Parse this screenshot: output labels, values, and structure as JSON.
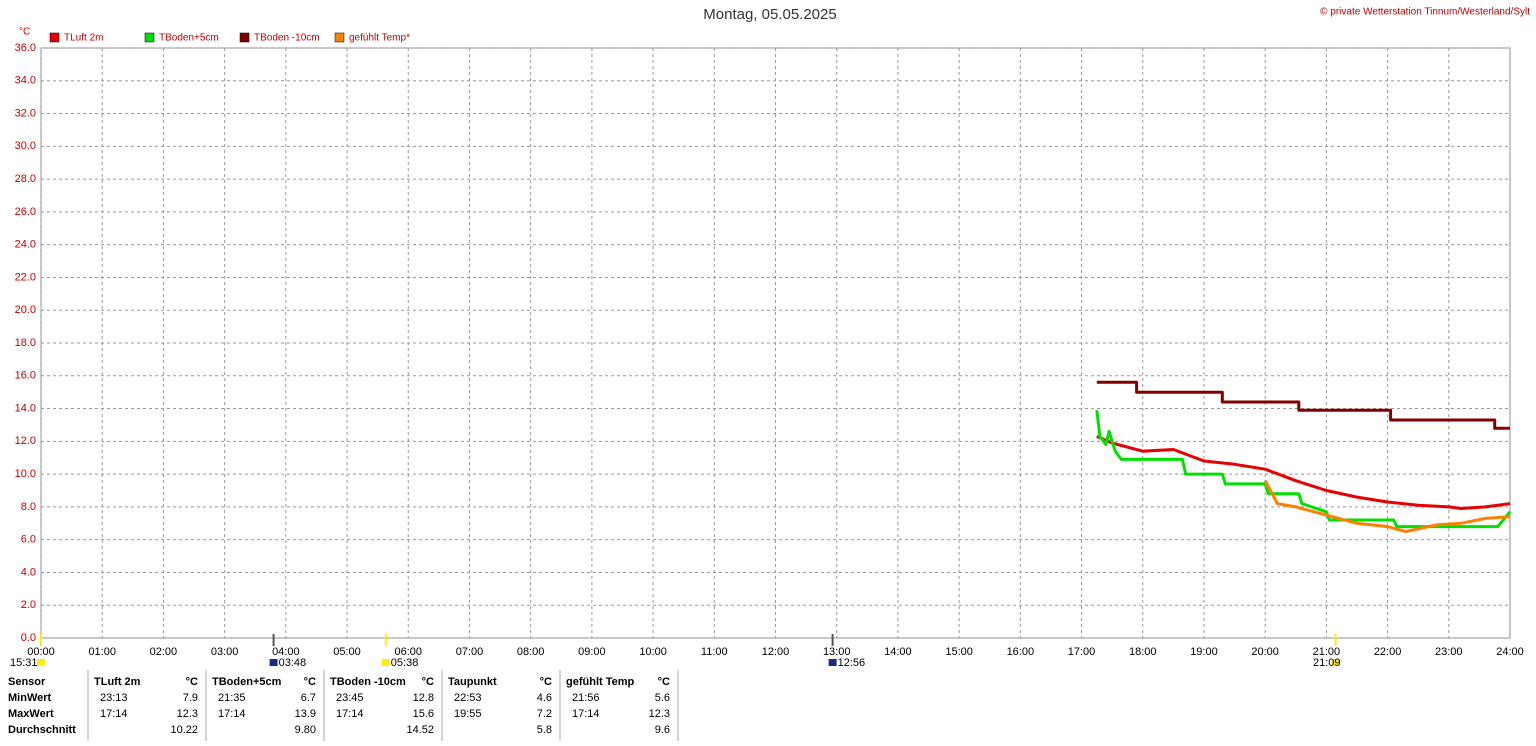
{
  "chart_data": {
    "type": "line",
    "title": "Montag, 05.05.2025",
    "copyright": "© private Wetterstation Tinnum/Westerland/Sylt",
    "y_unit": "°C",
    "xlim": [
      0,
      24
    ],
    "xticks": [
      {
        "value": 0,
        "label": "00:00"
      },
      {
        "value": 1,
        "label": "01:00"
      },
      {
        "value": 2,
        "label": "02:00"
      },
      {
        "value": 3,
        "label": "03:00"
      },
      {
        "value": 4,
        "label": "04:00"
      },
      {
        "value": 5,
        "label": "05:00"
      },
      {
        "value": 6,
        "label": "06:00"
      },
      {
        "value": 7,
        "label": "07:00"
      },
      {
        "value": 8,
        "label": "08:00"
      },
      {
        "value": 9,
        "label": "09:00"
      },
      {
        "value": 10,
        "label": "10:00"
      },
      {
        "value": 11,
        "label": "11:00"
      },
      {
        "value": 12,
        "label": "12:00"
      },
      {
        "value": 13,
        "label": "13:00"
      },
      {
        "value": 14,
        "label": "14:00"
      },
      {
        "value": 15,
        "label": "15:00"
      },
      {
        "value": 16,
        "label": "16:00"
      },
      {
        "value": 17,
        "label": "17:00"
      },
      {
        "value": 18,
        "label": "18:00"
      },
      {
        "value": 19,
        "label": "19:00"
      },
      {
        "value": 20,
        "label": "20:00"
      },
      {
        "value": 21,
        "label": "21:00"
      },
      {
        "value": 22,
        "label": "22:00"
      },
      {
        "value": 23,
        "label": "23:00"
      },
      {
        "value": 24,
        "label": "24:00"
      }
    ],
    "ylim": [
      0,
      36
    ],
    "yticks": [
      {
        "value": 0,
        "label": "0.0"
      },
      {
        "value": 2,
        "label": "2.0"
      },
      {
        "value": 4,
        "label": "4.0"
      },
      {
        "value": 6,
        "label": "6.0"
      },
      {
        "value": 8,
        "label": "8.0"
      },
      {
        "value": 10,
        "label": "10.0"
      },
      {
        "value": 12,
        "label": "12.0"
      },
      {
        "value": 14,
        "label": "14.0"
      },
      {
        "value": 16,
        "label": "16.0"
      },
      {
        "value": 18,
        "label": "18.0"
      },
      {
        "value": 20,
        "label": "20.0"
      },
      {
        "value": 22,
        "label": "22.0"
      },
      {
        "value": 24,
        "label": "24.0"
      },
      {
        "value": 26,
        "label": "26.0"
      },
      {
        "value": 28,
        "label": "28.0"
      },
      {
        "value": 30,
        "label": "30.0"
      },
      {
        "value": 32,
        "label": "32.0"
      },
      {
        "value": 34,
        "label": "34.0"
      },
      {
        "value": 36,
        "label": "36.0"
      }
    ],
    "grid": true,
    "series": [
      {
        "name": "TLuft 2m",
        "color": "#e80000",
        "x": [
          17.25,
          17.5,
          18,
          18.5,
          19,
          19.5,
          20,
          20.5,
          21,
          21.5,
          22,
          22.5,
          23,
          23.2,
          23.6,
          24
        ],
        "values": [
          12.3,
          11.9,
          11.4,
          11.5,
          10.8,
          10.6,
          10.3,
          9.6,
          9.0,
          8.6,
          8.3,
          8.1,
          8.0,
          7.9,
          8.0,
          8.2
        ]
      },
      {
        "name": "TBoden+5cm",
        "color": "#00e000",
        "x": [
          17.25,
          17.3,
          17.4,
          17.45,
          17.55,
          17.65,
          18.65,
          18.7,
          19.3,
          19.35,
          20.0,
          20.05,
          20.55,
          20.6,
          21.0,
          21.05,
          22.1,
          22.15,
          23.8,
          24
        ],
        "values": [
          13.9,
          12.3,
          11.8,
          12.6,
          11.4,
          10.9,
          10.9,
          10.0,
          10.0,
          9.4,
          9.4,
          8.8,
          8.8,
          8.2,
          7.7,
          7.2,
          7.2,
          6.8,
          6.8,
          7.7
        ]
      },
      {
        "name": "TBoden -10cm",
        "color": "#800000",
        "x": [
          17.25,
          17.9,
          17.9,
          19.3,
          19.3,
          20.55,
          20.55,
          22.05,
          22.05,
          23.75,
          23.75,
          24
        ],
        "values": [
          15.6,
          15.6,
          15.0,
          15.0,
          14.4,
          14.4,
          13.9,
          13.9,
          13.3,
          13.3,
          12.8,
          12.8
        ]
      },
      {
        "name": "gefühlt Temp*",
        "color": "#ff8000",
        "x": [
          20.0,
          20.2,
          20.5,
          21.0,
          21.5,
          22.0,
          22.3,
          22.8,
          23.2,
          23.6,
          24
        ],
        "values": [
          9.6,
          8.2,
          8.0,
          7.5,
          7.0,
          6.8,
          6.5,
          6.9,
          7.0,
          7.3,
          7.4
        ]
      }
    ],
    "events": [
      {
        "x": 0,
        "label": "15:31",
        "color": "#ffee00"
      },
      {
        "x": 3.8,
        "label": "03:48",
        "color": "#1a2a8a"
      },
      {
        "x": 5.633,
        "label": "05:38",
        "color": "#ffee00"
      },
      {
        "x": 12.933,
        "label": "12:56",
        "color": "#1a2a8a"
      },
      {
        "x": 21.15,
        "label": "21:09",
        "color": "#ffee00"
      }
    ]
  },
  "table": {
    "header": [
      "Sensor",
      [
        "TLuft 2m",
        "°C"
      ],
      [
        "TBoden+5cm",
        "°C"
      ],
      [
        "TBoden -10cm",
        "°C"
      ],
      [
        "Taupunkt",
        "°C"
      ],
      [
        "gefühlt Temp",
        "°C"
      ]
    ],
    "rows": [
      [
        "MinWert",
        [
          "23:13",
          "7.9"
        ],
        [
          "21:35",
          "6.7"
        ],
        [
          "23:45",
          "12.8"
        ],
        [
          "22:53",
          "4.6"
        ],
        [
          "21:56",
          "5.6"
        ]
      ],
      [
        "MaxWert",
        [
          "17:14",
          "12.3"
        ],
        [
          "17:14",
          "13.9"
        ],
        [
          "17:14",
          "15.6"
        ],
        [
          "19:55",
          "7.2"
        ],
        [
          "17:14",
          "12.3"
        ]
      ],
      [
        "Durchschnitt",
        "10.22",
        "9.80",
        "14.52",
        "5.8",
        "9.6"
      ]
    ]
  }
}
